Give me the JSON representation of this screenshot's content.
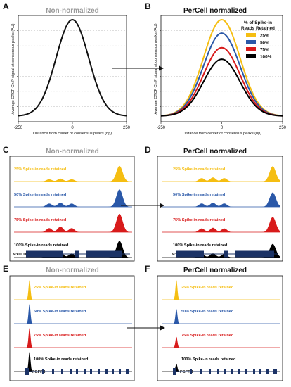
{
  "colors": {
    "c25": "#F5BE12",
    "c50": "#2A58A8",
    "c75": "#D81B1B",
    "c100": "#000000",
    "gene": "#1C3366",
    "grey_title": "#9A9A9A"
  },
  "chart_data": [
    {
      "panel": "A",
      "type": "line",
      "title": "Non-normalized",
      "xlabel": "Distance from center of consensus peaks (bp)",
      "ylabel": "Average CTCF ChIP signal at consensus peaks (AU)",
      "xticks": [
        "-250",
        "0",
        "250"
      ],
      "xlim": [
        -250,
        250
      ],
      "series": [
        {
          "peak": 1.0,
          "color": "#111111"
        }
      ]
    },
    {
      "panel": "B",
      "type": "line",
      "title": "PerCell normalized",
      "xlabel": "Distance from center of consensus peaks (bp)",
      "ylabel": "Average CTCF ChIP signal at consensus peaks (AU)",
      "xticks": [
        "-250",
        "0",
        "250"
      ],
      "xlim": [
        -250,
        250
      ],
      "legend_title": [
        "% of Spike-in",
        "Reads Retained"
      ],
      "legend_position": "top-right",
      "series": [
        {
          "name": "25%",
          "peak": 1.0,
          "color": "#F5BE12"
        },
        {
          "name": "50%",
          "peak": 0.86,
          "color": "#2A58A8"
        },
        {
          "name": "75%",
          "peak": 0.71,
          "color": "#D81B1B"
        },
        {
          "name": "100%",
          "peak": 0.59,
          "color": "#000000"
        }
      ]
    },
    {
      "panel": "C",
      "type": "area",
      "title": "Non-normalized",
      "gene": "MYOD1",
      "tracks": [
        {
          "label": "25% Spike-in reads retained",
          "color": "#F5BE12",
          "values": [
            0.12,
            0.16,
            0.12,
            0.85
          ]
        },
        {
          "label": "50% Spike-in reads retained",
          "color": "#2A58A8",
          "values": [
            0.18,
            0.22,
            0.18,
            0.95
          ]
        },
        {
          "label": "75% Spike-in reads retained",
          "color": "#D81B1B",
          "values": [
            0.22,
            0.3,
            0.22,
            1.0
          ]
        },
        {
          "label": "100% Spike-in reads retained",
          "color": "#000000",
          "values": [
            0.22,
            0.3,
            0.22,
            0.9
          ]
        }
      ]
    },
    {
      "panel": "D",
      "type": "area",
      "title": "PerCell normalized",
      "gene": "MYOD1",
      "tracks": [
        {
          "label": "25% Spike-in reads retained",
          "color": "#F5BE12",
          "values": [
            0.2,
            0.24,
            0.2,
            0.9
          ]
        },
        {
          "label": "50% Spike-in reads retained",
          "color": "#2A58A8",
          "values": [
            0.2,
            0.24,
            0.2,
            0.85
          ]
        },
        {
          "label": "75% Spike-in reads retained",
          "color": "#D81B1B",
          "values": [
            0.22,
            0.26,
            0.22,
            0.9
          ]
        },
        {
          "label": "100% Spike-in reads retained",
          "color": "#000000",
          "values": [
            0.2,
            0.24,
            0.2,
            0.8
          ]
        }
      ]
    },
    {
      "panel": "E",
      "type": "area",
      "title": "Non-normalized",
      "gene": "FGFR4",
      "tracks": [
        {
          "label": "25% Spike-in reads retained",
          "color": "#F5BE12",
          "values": [
            1.0
          ]
        },
        {
          "label": "50% Spike-in reads retained",
          "color": "#2A58A8",
          "values": [
            1.0
          ]
        },
        {
          "label": "75% Spike-in reads retained",
          "color": "#D81B1B",
          "values": [
            1.0
          ]
        },
        {
          "label": "100% Spike-in reads retained",
          "color": "#000000",
          "values": [
            1.0
          ]
        }
      ]
    },
    {
      "panel": "F",
      "type": "area",
      "title": "PerCell normalized",
      "gene": "FGFR4",
      "tracks": [
        {
          "label": "25% Spike-in reads retained",
          "color": "#F5BE12",
          "values": [
            1.0
          ]
        },
        {
          "label": "50% Spike-in reads retained",
          "color": "#2A58A8",
          "values": [
            0.75
          ]
        },
        {
          "label": "75% Spike-in reads retained",
          "color": "#D81B1B",
          "values": [
            0.55
          ]
        },
        {
          "label": "100% Spike-in reads retained",
          "color": "#000000",
          "values": [
            0.4
          ]
        }
      ]
    }
  ]
}
